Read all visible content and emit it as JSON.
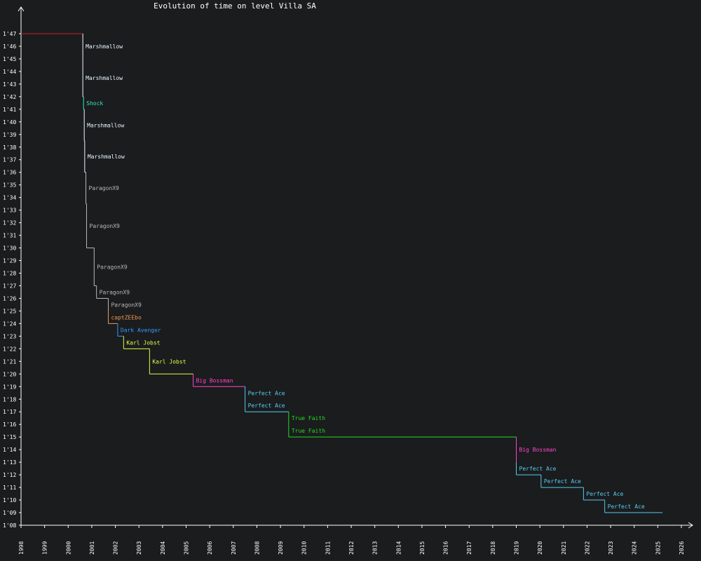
{
  "chart_data": {
    "type": "line",
    "title": "Evolution of time on level Villa SA",
    "xlabel": "",
    "ylabel": "",
    "x_ticks": [
      "1998",
      "1999",
      "2000",
      "2001",
      "2002",
      "2003",
      "2004",
      "2005",
      "2006",
      "2007",
      "2008",
      "2009",
      "2010",
      "2011",
      "2012",
      "2013",
      "2014",
      "2015",
      "2016",
      "2017",
      "2018",
      "2019",
      "2020",
      "2021",
      "2022",
      "2023",
      "2024",
      "2025",
      "2026"
    ],
    "y_ticks": [
      "1'08",
      "1'09",
      "1'10",
      "1'11",
      "1'12",
      "1'13",
      "1'14",
      "1'15",
      "1'16",
      "1'17",
      "1'18",
      "1'19",
      "1'20",
      "1'21",
      "1'22",
      "1'23",
      "1'24",
      "1'25",
      "1'26",
      "1'27",
      "1'28",
      "1'29",
      "1'30",
      "1'31",
      "1'32",
      "1'33",
      "1'34",
      "1'35",
      "1'36",
      "1'37",
      "1'38",
      "1'39",
      "1'40",
      "1'41",
      "1'42",
      "1'43",
      "1'44",
      "1'45",
      "1'46",
      "1'47"
    ],
    "x_range": [
      1998,
      2026
    ],
    "y_range_seconds": [
      68,
      108
    ],
    "grid": false,
    "segments": [
      {
        "player": "",
        "date": 1998.0,
        "time": 107.0,
        "color": "#cc2222"
      },
      {
        "player": "Marshmallow",
        "date": 2000.62,
        "time": 105.0,
        "color": "#e8f8ff"
      },
      {
        "player": "Marshmallow",
        "date": 2000.62,
        "time": 102.0,
        "color": "#e8f8ff"
      },
      {
        "player": "Shock",
        "date": 2000.65,
        "time": 101.0,
        "color": "#33eebb"
      },
      {
        "player": "Marshmallow",
        "date": 2000.68,
        "time": 98.5,
        "color": "#e8f8ff"
      },
      {
        "player": "Marshmallow",
        "date": 2000.7,
        "time": 96.0,
        "color": "#e8f8ff"
      },
      {
        "player": "ParagonX9",
        "date": 2000.75,
        "time": 93.5,
        "color": "#b8b8b8"
      },
      {
        "player": "ParagonX9",
        "date": 2000.78,
        "time": 90.0,
        "color": "#b8b8b8"
      },
      {
        "player": "ParagonX9",
        "date": 2001.1,
        "time": 87.0,
        "color": "#b8b8b8"
      },
      {
        "player": "ParagonX9",
        "date": 2001.2,
        "time": 86.0,
        "color": "#b8b8b8"
      },
      {
        "player": "ParagonX9",
        "date": 2001.7,
        "time": 85.0,
        "color": "#b8b8b8"
      },
      {
        "player": "captZEEbo",
        "date": 2001.7,
        "time": 84.0,
        "color": "#ee9955"
      },
      {
        "player": "Dark Avenger",
        "date": 2002.1,
        "time": 83.0,
        "color": "#3399ff"
      },
      {
        "player": "Karl Jobst",
        "date": 2002.35,
        "time": 82.0,
        "color": "#ddff44"
      },
      {
        "player": "Karl Jobst",
        "date": 2003.45,
        "time": 80.0,
        "color": "#ddff44"
      },
      {
        "player": "Big Bossman",
        "date": 2005.3,
        "time": 79.0,
        "color": "#ff44cc"
      },
      {
        "player": "Perfect Ace",
        "date": 2007.5,
        "time": 78.0,
        "color": "#55ccee"
      },
      {
        "player": "Perfect Ace",
        "date": 2007.5,
        "time": 77.0,
        "color": "#55ccee"
      },
      {
        "player": "True Faith",
        "date": 2009.35,
        "time": 76.0,
        "color": "#22dd22"
      },
      {
        "player": "True Faith",
        "date": 2009.35,
        "time": 75.0,
        "color": "#22dd22"
      },
      {
        "player": "Big Bossman",
        "date": 2019.0,
        "time": 73.0,
        "color": "#ff44cc"
      },
      {
        "player": "Perfect Ace",
        "date": 2019.0,
        "time": 72.0,
        "color": "#55ccee"
      },
      {
        "player": "Perfect Ace",
        "date": 2020.05,
        "time": 71.0,
        "color": "#55ccee"
      },
      {
        "player": "Perfect Ace",
        "date": 2021.85,
        "time": 70.0,
        "color": "#55ccee"
      },
      {
        "player": "Perfect Ace",
        "date": 2022.75,
        "time": 69.0,
        "color": "#55ccee"
      }
    ],
    "end_date": 2025.2
  }
}
